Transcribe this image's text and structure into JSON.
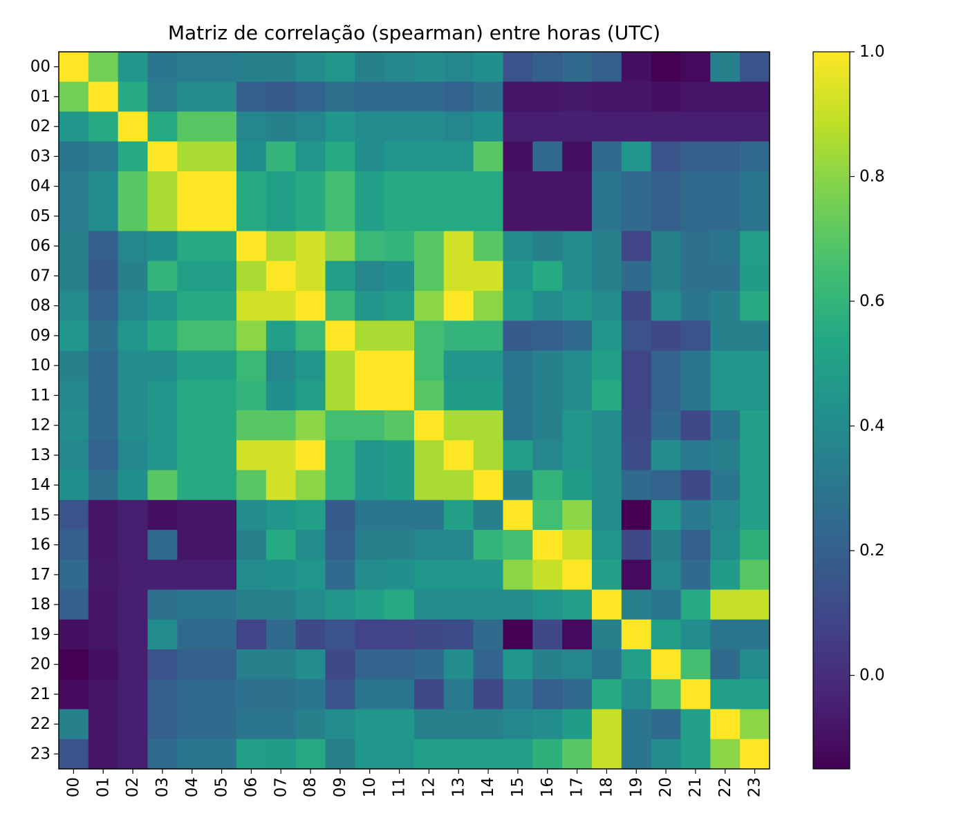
{
  "chart_data": {
    "type": "heatmap",
    "title": "Matriz de correlação (spearman) entre horas (UTC)",
    "xlabel": "",
    "ylabel": "",
    "x_labels": [
      "00",
      "01",
      "02",
      "03",
      "04",
      "05",
      "06",
      "07",
      "08",
      "09",
      "10",
      "11",
      "12",
      "13",
      "14",
      "15",
      "16",
      "17",
      "18",
      "19",
      "20",
      "21",
      "22",
      "23"
    ],
    "y_labels": [
      "00",
      "01",
      "02",
      "03",
      "04",
      "05",
      "06",
      "07",
      "08",
      "09",
      "10",
      "11",
      "12",
      "13",
      "14",
      "15",
      "16",
      "17",
      "18",
      "19",
      "20",
      "21",
      "22",
      "23"
    ],
    "colormap": "viridis",
    "colorbar": {
      "vmin": -0.15,
      "vmax": 1.0,
      "ticks": [
        0.0,
        0.2,
        0.4,
        0.6,
        0.8,
        1.0
      ],
      "tick_labels": [
        "0.0",
        "0.2",
        "0.4",
        "0.6",
        "0.8",
        "1.0"
      ]
    },
    "values": [
      [
        1.0,
        0.75,
        0.45,
        0.3,
        0.33,
        0.33,
        0.35,
        0.35,
        0.4,
        0.45,
        0.35,
        0.38,
        0.4,
        0.38,
        0.42,
        0.15,
        0.2,
        0.25,
        0.2,
        -0.1,
        -0.15,
        -0.12,
        0.35,
        0.15
      ],
      [
        0.75,
        1.0,
        0.55,
        0.33,
        0.4,
        0.4,
        0.2,
        0.18,
        0.22,
        0.28,
        0.25,
        0.25,
        0.25,
        0.22,
        0.28,
        -0.08,
        -0.08,
        -0.07,
        -0.08,
        -0.08,
        -0.1,
        -0.08,
        -0.08,
        -0.08
      ],
      [
        0.45,
        0.55,
        1.0,
        0.55,
        0.7,
        0.7,
        0.38,
        0.35,
        0.38,
        0.45,
        0.4,
        0.4,
        0.4,
        0.38,
        0.42,
        -0.05,
        -0.05,
        -0.05,
        -0.05,
        -0.05,
        -0.05,
        -0.05,
        -0.05,
        -0.05
      ],
      [
        0.3,
        0.33,
        0.55,
        1.0,
        0.85,
        0.85,
        0.42,
        0.6,
        0.45,
        0.55,
        0.4,
        0.45,
        0.45,
        0.45,
        0.7,
        -0.1,
        0.25,
        -0.1,
        0.25,
        0.45,
        0.15,
        0.2,
        0.2,
        0.25
      ],
      [
        0.33,
        0.4,
        0.7,
        0.85,
        1.0,
        1.0,
        0.55,
        0.5,
        0.55,
        0.65,
        0.5,
        0.55,
        0.55,
        0.55,
        0.55,
        -0.08,
        -0.08,
        -0.08,
        0.3,
        0.25,
        0.2,
        0.25,
        0.25,
        0.3
      ],
      [
        0.33,
        0.4,
        0.7,
        0.85,
        1.0,
        1.0,
        0.55,
        0.5,
        0.55,
        0.65,
        0.5,
        0.55,
        0.55,
        0.55,
        0.55,
        -0.08,
        -0.08,
        -0.08,
        0.3,
        0.25,
        0.2,
        0.25,
        0.25,
        0.3
      ],
      [
        0.35,
        0.2,
        0.38,
        0.42,
        0.55,
        0.55,
        1.0,
        0.85,
        0.92,
        0.8,
        0.62,
        0.6,
        0.7,
        0.92,
        0.7,
        0.4,
        0.35,
        0.4,
        0.35,
        0.08,
        0.35,
        0.28,
        0.3,
        0.5
      ],
      [
        0.35,
        0.18,
        0.35,
        0.6,
        0.5,
        0.5,
        0.85,
        1.0,
        0.92,
        0.5,
        0.38,
        0.42,
        0.7,
        0.92,
        0.92,
        0.45,
        0.55,
        0.4,
        0.35,
        0.25,
        0.35,
        0.28,
        0.28,
        0.48
      ],
      [
        0.4,
        0.22,
        0.38,
        0.45,
        0.55,
        0.55,
        0.92,
        0.92,
        1.0,
        0.62,
        0.45,
        0.5,
        0.8,
        1.0,
        0.8,
        0.5,
        0.4,
        0.45,
        0.4,
        0.1,
        0.4,
        0.3,
        0.35,
        0.55
      ],
      [
        0.45,
        0.28,
        0.45,
        0.55,
        0.65,
        0.65,
        0.8,
        0.5,
        0.62,
        1.0,
        0.85,
        0.85,
        0.65,
        0.6,
        0.6,
        0.18,
        0.2,
        0.25,
        0.45,
        0.15,
        0.1,
        0.15,
        0.35,
        0.35
      ],
      [
        0.35,
        0.25,
        0.4,
        0.4,
        0.5,
        0.5,
        0.62,
        0.38,
        0.45,
        0.85,
        1.0,
        1.0,
        0.65,
        0.45,
        0.45,
        0.3,
        0.35,
        0.4,
        0.5,
        0.08,
        0.22,
        0.3,
        0.45,
        0.45
      ],
      [
        0.38,
        0.25,
        0.4,
        0.45,
        0.55,
        0.55,
        0.6,
        0.42,
        0.5,
        0.85,
        1.0,
        1.0,
        0.7,
        0.48,
        0.48,
        0.3,
        0.35,
        0.4,
        0.55,
        0.08,
        0.22,
        0.3,
        0.45,
        0.45
      ],
      [
        0.4,
        0.25,
        0.4,
        0.45,
        0.55,
        0.55,
        0.7,
        0.7,
        0.8,
        0.65,
        0.65,
        0.7,
        1.0,
        0.85,
        0.85,
        0.3,
        0.35,
        0.45,
        0.4,
        0.1,
        0.25,
        0.1,
        0.3,
        0.5
      ],
      [
        0.38,
        0.22,
        0.38,
        0.45,
        0.55,
        0.55,
        0.92,
        0.92,
        1.0,
        0.6,
        0.45,
        0.48,
        0.85,
        1.0,
        0.85,
        0.5,
        0.38,
        0.45,
        0.4,
        0.12,
        0.4,
        0.32,
        0.35,
        0.5
      ],
      [
        0.42,
        0.28,
        0.42,
        0.7,
        0.55,
        0.55,
        0.7,
        0.92,
        0.8,
        0.6,
        0.45,
        0.48,
        0.85,
        0.85,
        1.0,
        0.35,
        0.6,
        0.48,
        0.4,
        0.25,
        0.22,
        0.1,
        0.3,
        0.5
      ],
      [
        0.15,
        -0.08,
        -0.05,
        -0.1,
        -0.08,
        -0.08,
        0.4,
        0.45,
        0.5,
        0.18,
        0.3,
        0.3,
        0.3,
        0.5,
        0.35,
        1.0,
        0.65,
        0.8,
        0.4,
        -0.15,
        0.45,
        0.32,
        0.38,
        0.5
      ],
      [
        0.2,
        -0.08,
        -0.05,
        0.25,
        -0.08,
        -0.08,
        0.35,
        0.55,
        0.4,
        0.2,
        0.35,
        0.35,
        0.38,
        0.38,
        0.6,
        0.65,
        1.0,
        0.9,
        0.45,
        0.1,
        0.35,
        0.2,
        0.4,
        0.58
      ],
      [
        0.25,
        -0.07,
        -0.05,
        -0.05,
        -0.05,
        -0.05,
        0.4,
        0.42,
        0.45,
        0.25,
        0.4,
        0.42,
        0.45,
        0.45,
        0.45,
        0.8,
        0.9,
        1.0,
        0.5,
        -0.12,
        0.38,
        0.25,
        0.48,
        0.7
      ],
      [
        0.2,
        -0.08,
        -0.05,
        0.28,
        0.3,
        0.3,
        0.35,
        0.35,
        0.4,
        0.45,
        0.5,
        0.55,
        0.4,
        0.4,
        0.4,
        0.4,
        0.45,
        0.5,
        1.0,
        0.35,
        0.3,
        0.55,
        0.9,
        0.9
      ],
      [
        -0.1,
        -0.08,
        -0.05,
        0.4,
        0.25,
        0.25,
        0.08,
        0.25,
        0.1,
        0.15,
        0.08,
        0.08,
        0.1,
        0.12,
        0.25,
        -0.15,
        0.1,
        -0.12,
        0.35,
        1.0,
        0.5,
        0.4,
        0.3,
        0.3
      ],
      [
        -0.15,
        -0.1,
        -0.05,
        0.15,
        0.2,
        0.2,
        0.35,
        0.35,
        0.4,
        0.1,
        0.22,
        0.22,
        0.25,
        0.4,
        0.22,
        0.45,
        0.35,
        0.38,
        0.3,
        0.5,
        1.0,
        0.65,
        0.25,
        0.4
      ],
      [
        -0.12,
        -0.08,
        -0.05,
        0.2,
        0.25,
        0.25,
        0.28,
        0.28,
        0.3,
        0.15,
        0.3,
        0.3,
        0.1,
        0.32,
        0.1,
        0.32,
        0.2,
        0.25,
        0.55,
        0.4,
        0.65,
        1.0,
        0.5,
        0.5
      ],
      [
        0.35,
        -0.08,
        -0.05,
        0.2,
        0.25,
        0.25,
        0.3,
        0.3,
        0.35,
        0.4,
        0.45,
        0.45,
        0.35,
        0.35,
        0.35,
        0.38,
        0.4,
        0.48,
        0.9,
        0.3,
        0.25,
        0.5,
        1.0,
        0.8
      ],
      [
        0.15,
        -0.08,
        -0.05,
        0.25,
        0.3,
        0.3,
        0.5,
        0.48,
        0.55,
        0.35,
        0.45,
        0.45,
        0.5,
        0.5,
        0.5,
        0.5,
        0.58,
        0.7,
        0.9,
        0.3,
        0.4,
        0.5,
        0.8,
        1.0
      ]
    ]
  }
}
